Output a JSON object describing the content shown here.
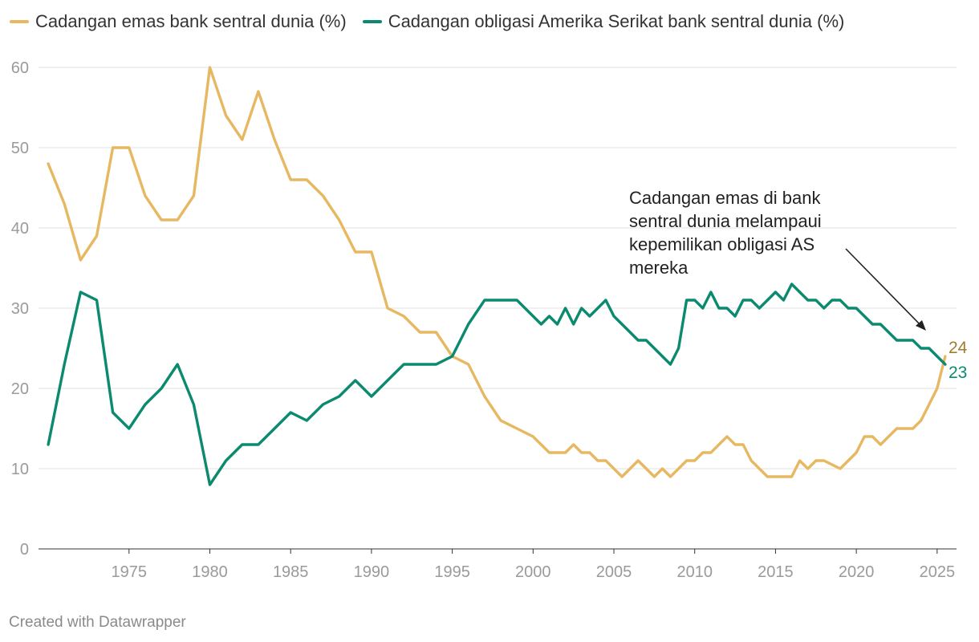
{
  "legend": {
    "gold": "Cadangan emas bank sentral dunia (%)",
    "bonds": "Cadangan obligasi Amerika Serikat bank sentral dunia (%)"
  },
  "colors": {
    "gold": "#e7b862",
    "bonds": "#0b8a6f",
    "gold_label": "#a07c2c",
    "grid": "#e2e2e2"
  },
  "annotation": "Cadangan emas di bank sentral dunia melampaui kepemilikan obligasi AS mereka",
  "credit": "Created with Datawrapper",
  "end_labels": {
    "gold": "24",
    "bonds": "23"
  },
  "chart_data": {
    "type": "line",
    "x_range": [
      1969.4,
      2026.2
    ],
    "ylim": [
      0,
      60
    ],
    "y_ticks": [
      0,
      10,
      20,
      30,
      40,
      50,
      60
    ],
    "x_ticks": [
      1975,
      1980,
      1985,
      1990,
      1995,
      2000,
      2005,
      2010,
      2015,
      2020,
      2025
    ],
    "grid": "horizontal",
    "legend_position": "top-left",
    "series": [
      {
        "name": "Cadangan emas bank sentral dunia (%)",
        "x": [
          1970,
          1971,
          1972,
          1973,
          1974,
          1975,
          1976,
          1977,
          1978,
          1979,
          1980,
          1981,
          1982,
          1983,
          1984,
          1985,
          1986,
          1987,
          1988,
          1989,
          1990,
          1991,
          1992,
          1993,
          1994,
          1995,
          1996,
          1997,
          1998,
          1999,
          2000,
          2000.5,
          2001,
          2002,
          2002.5,
          2003,
          2003.5,
          2004,
          2004.5,
          2005,
          2005.5,
          2006,
          2006.5,
          2007,
          2007.5,
          2008,
          2008.5,
          2009,
          2009.5,
          2010,
          2010.5,
          2011,
          2011.5,
          2012,
          2012.5,
          2013,
          2013.5,
          2014,
          2014.5,
          2015,
          2016,
          2016.5,
          2017,
          2017.5,
          2018,
          2019,
          2019.5,
          2020,
          2020.5,
          2021,
          2021.5,
          2022,
          2022.5,
          2023,
          2023.5,
          2024,
          2024.5,
          2025,
          2025.5
        ],
        "values": [
          48,
          43,
          36,
          39,
          50,
          50,
          44,
          41,
          41,
          44,
          60,
          54,
          51,
          57,
          51,
          46,
          46,
          44,
          41,
          37,
          37,
          30,
          29,
          27,
          27,
          24,
          23,
          19,
          16,
          15,
          14,
          13,
          12,
          12,
          13,
          12,
          12,
          11,
          11,
          10,
          9,
          10,
          11,
          10,
          9,
          10,
          9,
          10,
          11,
          11,
          12,
          12,
          13,
          14,
          13,
          13,
          11,
          10,
          9,
          9,
          9,
          11,
          10,
          11,
          11,
          10,
          11,
          12,
          14,
          14,
          13,
          14,
          15,
          15,
          15,
          16,
          18,
          20,
          24
        ]
      },
      {
        "name": "Cadangan obligasi Amerika Serikat bank sentral dunia (%)",
        "x": [
          1970,
          1971,
          1972,
          1973,
          1974,
          1975,
          1976,
          1977,
          1978,
          1979,
          1980,
          1981,
          1982,
          1983,
          1984,
          1985,
          1986,
          1987,
          1988,
          1989,
          1990,
          1991,
          1992,
          1993,
          1994,
          1995,
          1996,
          1997,
          1998,
          1999,
          2000,
          2000.5,
          2001,
          2001.5,
          2002,
          2002.5,
          2003,
          2003.5,
          2004,
          2004.5,
          2005,
          2005.5,
          2006,
          2006.5,
          2007,
          2007.5,
          2008,
          2008.5,
          2009,
          2009.5,
          2010,
          2010.5,
          2011,
          2011.5,
          2012,
          2012.5,
          2013,
          2013.5,
          2014,
          2014.5,
          2015,
          2015.5,
          2016,
          2016.5,
          2017,
          2017.5,
          2018,
          2018.5,
          2019,
          2019.5,
          2020,
          2020.5,
          2021,
          2021.5,
          2022,
          2022.5,
          2023,
          2023.5,
          2024,
          2024.5,
          2025,
          2025.5
        ],
        "values": [
          13,
          23,
          32,
          31,
          17,
          15,
          18,
          20,
          23,
          18,
          8,
          11,
          13,
          13,
          15,
          17,
          16,
          18,
          19,
          21,
          19,
          21,
          23,
          23,
          23,
          24,
          28,
          31,
          31,
          31,
          29,
          28,
          29,
          28,
          30,
          28,
          30,
          29,
          30,
          31,
          29,
          28,
          27,
          26,
          26,
          25,
          24,
          23,
          25,
          31,
          31,
          30,
          32,
          30,
          30,
          29,
          31,
          31,
          30,
          31,
          32,
          31,
          33,
          32,
          31,
          31,
          30,
          31,
          31,
          30,
          30,
          29,
          28,
          28,
          27,
          26,
          26,
          26,
          25,
          25,
          24,
          23
        ]
      }
    ]
  }
}
